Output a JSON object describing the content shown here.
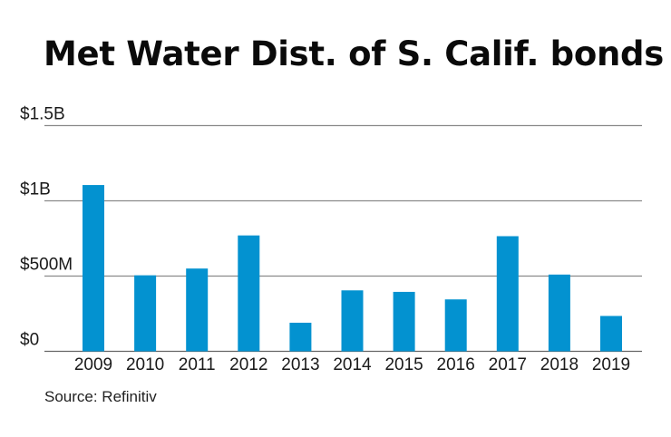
{
  "chart_data": {
    "type": "bar",
    "title": "Met Water Dist. of S. Calif. bonds",
    "xlabel": "",
    "ylabel": "",
    "units": "USD millions",
    "categories": [
      "2009",
      "2010",
      "2011",
      "2012",
      "2013",
      "2014",
      "2015",
      "2016",
      "2017",
      "2018",
      "2019"
    ],
    "values": [
      1105,
      505,
      550,
      770,
      190,
      405,
      395,
      345,
      765,
      510,
      235
    ],
    "ylim": [
      0,
      1500
    ],
    "yticks": [
      0,
      500,
      1000,
      1500
    ],
    "ytick_labels": [
      "$0",
      "$500M",
      "$1B",
      "$1.5B"
    ],
    "grid": true,
    "legend": "none",
    "bar_color": "#0392d0",
    "source": "Source: Refinitiv"
  }
}
